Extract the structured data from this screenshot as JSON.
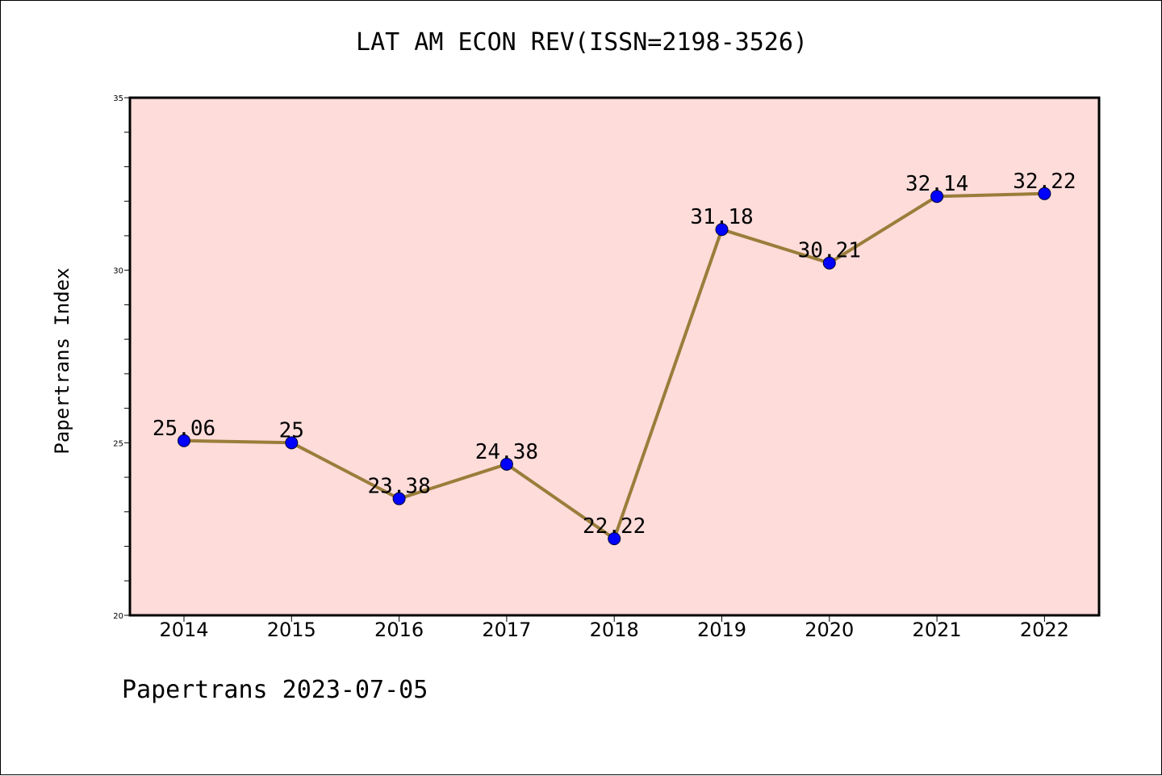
{
  "title": "LAT AM ECON REV(ISSN=2198-3526)",
  "footer": "Papertrans 2023-07-05",
  "colors": {
    "plot_background": "#fddcda",
    "line": "#9a7d3a",
    "marker": "#0000ff",
    "axis": "#000000"
  },
  "chart_data": {
    "type": "line",
    "title": "LAT AM ECON REV(ISSN=2198-3526)",
    "xlabel": "",
    "ylabel": "Papertrans Index",
    "categories": [
      "2014",
      "2015",
      "2016",
      "2017",
      "2018",
      "2019",
      "2020",
      "2021",
      "2022"
    ],
    "values": [
      25.06,
      25,
      23.38,
      24.38,
      22.22,
      31.18,
      30.21,
      32.14,
      32.22
    ],
    "data_labels": [
      "25.06",
      "25",
      "23.38",
      "24.38",
      "22.22",
      "31.18",
      "30.21",
      "32.14",
      "32.22"
    ],
    "ylim": [
      20,
      35
    ],
    "yticks": [
      20,
      25,
      30,
      35
    ],
    "grid": false,
    "legend": "none"
  }
}
